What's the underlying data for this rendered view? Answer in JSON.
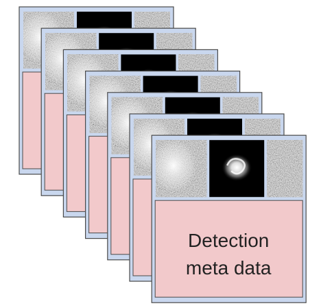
{
  "card": {
    "label_lines": [
      "Detection",
      "meta data"
    ]
  }
}
